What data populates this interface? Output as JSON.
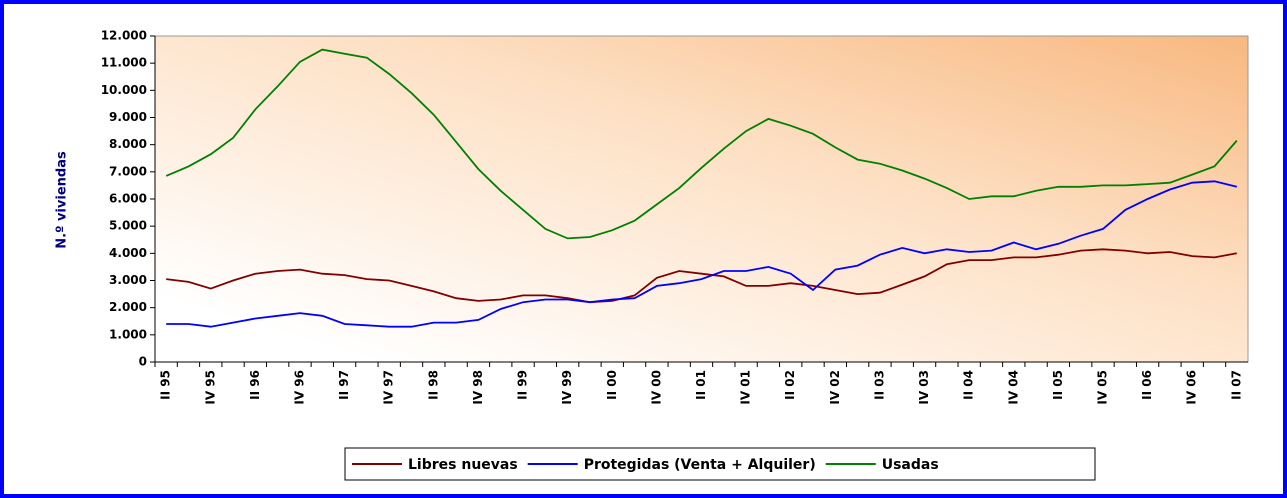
{
  "chart_data": {
    "type": "line",
    "y_label": "N.º viviendas",
    "categories": [
      "II 95",
      null,
      "IV 95",
      null,
      "II 96",
      null,
      "IV 96",
      null,
      "II 97",
      null,
      "IV 97",
      null,
      "II 98",
      null,
      "IV 98",
      null,
      "II 99",
      null,
      "IV 99",
      null,
      "II 00",
      null,
      "IV 00",
      null,
      "II 01",
      null,
      "IV 01",
      null,
      "II 02",
      null,
      "IV 02",
      null,
      "II 03",
      null,
      "IV 03",
      null,
      "II 04",
      null,
      "IV 04",
      null,
      "II 05",
      null,
      "IV 05",
      null,
      "II 06",
      null,
      "IV 06",
      null,
      "II 07"
    ],
    "series": [
      {
        "name": "Libres nuevas",
        "color": "#800000",
        "values": [
          3050,
          2950,
          2700,
          3000,
          3250,
          3350,
          3400,
          3250,
          3200,
          3050,
          3000,
          2800,
          2600,
          2350,
          2250,
          2300,
          2450,
          2450,
          2350,
          2200,
          2250,
          2450,
          3100,
          3350,
          3250,
          3150,
          2800,
          2800,
          2900,
          2800,
          2650,
          2500,
          2550,
          2850,
          3150,
          3600,
          3750,
          3750,
          3850,
          3850,
          3950,
          4100,
          4150,
          4100,
          4000,
          4050,
          3900,
          3850,
          4000
        ]
      },
      {
        "name": "Protegidas (Venta + Alquiler)",
        "color": "#0000ff",
        "values": [
          1400,
          1400,
          1300,
          1450,
          1600,
          1700,
          1800,
          1700,
          1400,
          1350,
          1300,
          1300,
          1450,
          1450,
          1550,
          1950,
          2200,
          2300,
          2300,
          2200,
          2300,
          2350,
          2800,
          2900,
          3050,
          3350,
          3350,
          3500,
          3250,
          2650,
          3400,
          3550,
          3950,
          4200,
          4000,
          4150,
          4050,
          4100,
          4400,
          4150,
          4350,
          4650,
          4900,
          5600,
          6000,
          6350,
          6600,
          6650,
          6450
        ]
      },
      {
        "name": "Usadas",
        "color": "#008000",
        "values": [
          6850,
          7200,
          7650,
          8250,
          9300,
          10150,
          11050,
          11500,
          11350,
          11200,
          10600,
          9900,
          9100,
          8100,
          7100,
          6300,
          5600,
          4900,
          4550,
          4600,
          4850,
          5200,
          5800,
          6400,
          7150,
          7850,
          8500,
          8950,
          8700,
          8400,
          7900,
          7450,
          7300,
          7050,
          6750,
          6400,
          6000,
          6100,
          6100,
          6300,
          6450,
          6450,
          6500,
          6500,
          6550,
          6600,
          6900,
          7200,
          8150
        ]
      }
    ],
    "ylim": [
      0,
      12000
    ],
    "yticks": [
      0,
      {
        "value": 1000,
        "label": "1.000"
      },
      {
        "value": 2000,
        "label": "2.000"
      },
      {
        "value": 3000,
        "label": "3.000"
      },
      {
        "value": 4000,
        "label": "4.000"
      },
      {
        "value": 5000,
        "label": "5.000"
      },
      {
        "value": 6000,
        "label": "6.000"
      },
      {
        "value": 7000,
        "label": "7.000"
      },
      {
        "value": 8000,
        "label": "8.000"
      },
      {
        "value": 9000,
        "label": "9.000"
      },
      {
        "value": 10000,
        "label": "10.000"
      },
      {
        "value": 11000,
        "label": "11.000"
      },
      {
        "value": 12000,
        "label": "12.000"
      }
    ],
    "grid": false,
    "legend": "bottom"
  }
}
